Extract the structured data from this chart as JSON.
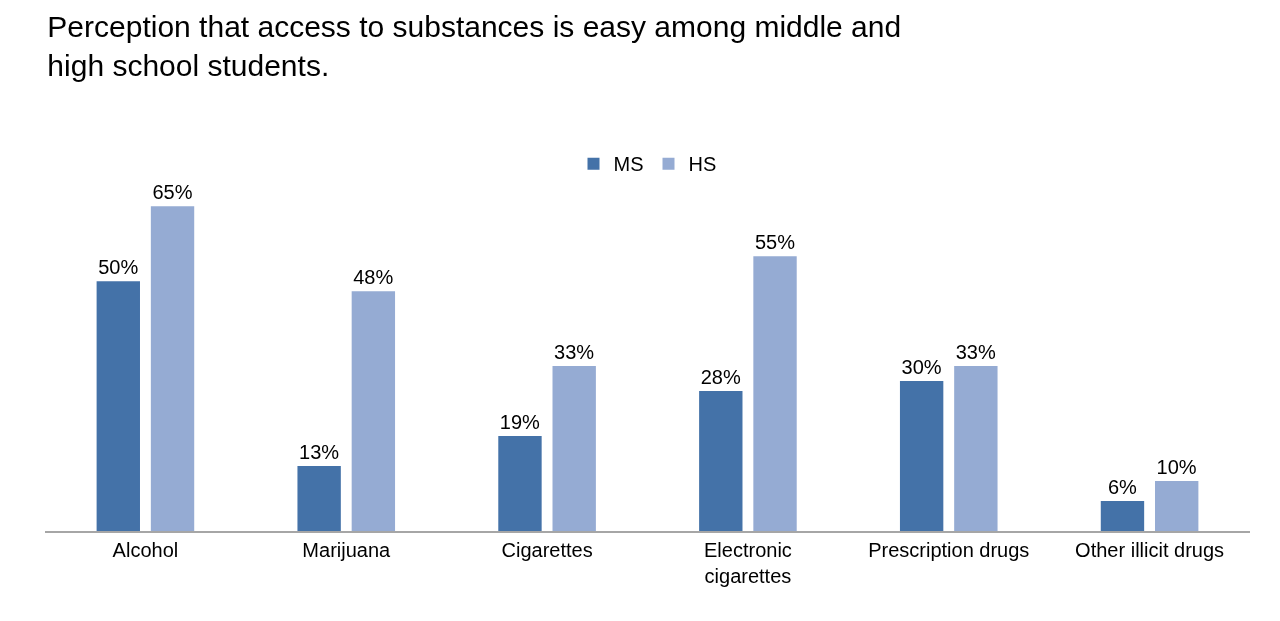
{
  "chart_data": {
    "type": "bar",
    "title": "Perception that access to substances is easy among middle and high school students.",
    "categories": [
      "Alcohol",
      "Marijuana",
      "Cigarettes",
      "Electronic cigarettes",
      "Prescription drugs",
      "Other illicit drugs"
    ],
    "series": [
      {
        "name": "MS",
        "color": "#4472a8",
        "values": [
          50,
          13,
          19,
          28,
          30,
          6
        ],
        "value_labels": [
          "50%",
          "13%",
          "19%",
          "28%",
          "30%",
          "6%"
        ]
      },
      {
        "name": "HS",
        "color": "#95abd3",
        "values": [
          65,
          48,
          33,
          55,
          33,
          10
        ],
        "value_labels": [
          "65%",
          "48%",
          "33%",
          "55%",
          "33%",
          "10%"
        ]
      }
    ],
    "legend": "top"
  }
}
